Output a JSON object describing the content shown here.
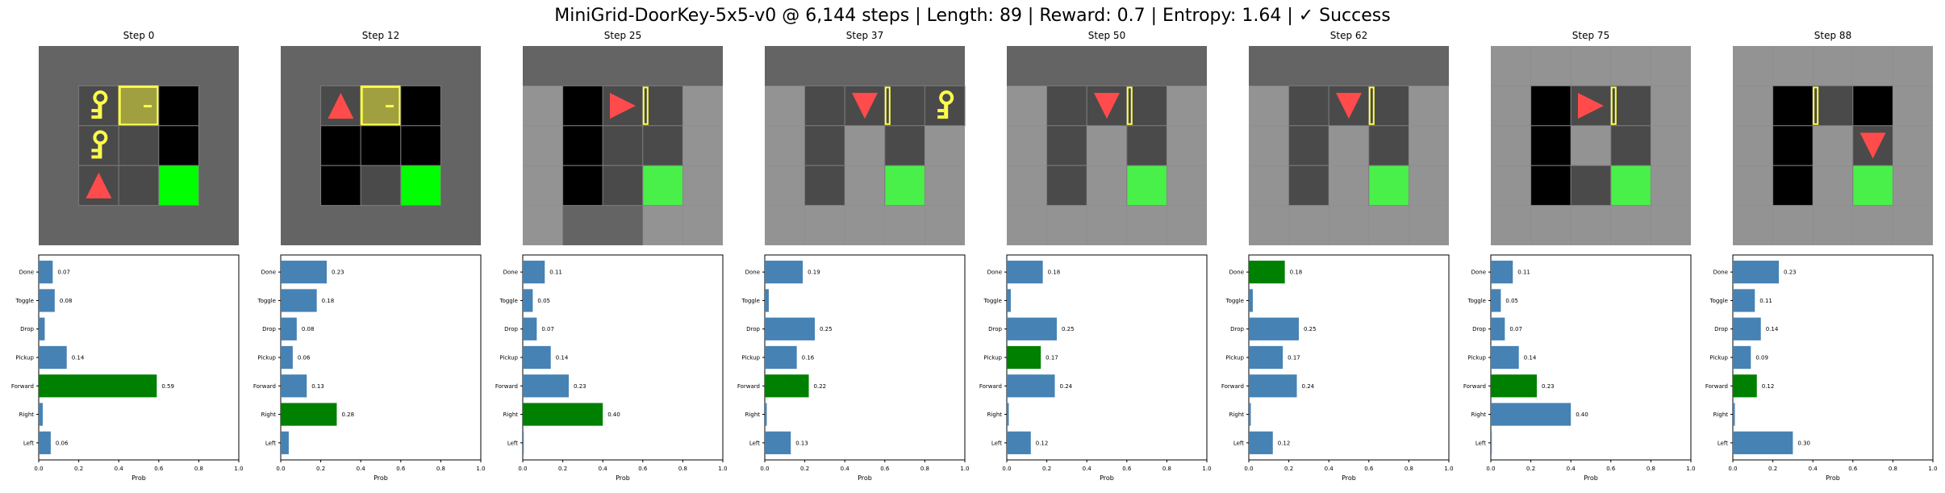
{
  "suptitle": "MiniGrid-DoorKey-5x5-v0 @ 6,144 steps | Length: 89 | Reward: 0.7 | Entropy: 1.64 | ✓ Success",
  "colors": {
    "bar": "#4682b4",
    "bar_selected": "#008000",
    "wall": "#646464",
    "floor_view": "#939393",
    "floor_visible": "#4a4a4a",
    "unseen": "#000000",
    "goal_view": "#4af04a",
    "goal": "#00ff00",
    "agent": "#ff4b4b",
    "key": "#ffff4b",
    "door_closed_fill": "#a0a040",
    "door_stroke": "#ffff4b"
  },
  "steps": [
    {
      "title": "Step 0",
      "agent_dir": "up",
      "door": "closed",
      "has_key_on_floor": true
    },
    {
      "title": "Step 12",
      "agent_dir": "up",
      "door": "closed",
      "has_key_on_floor": false
    },
    {
      "title": "Step 25",
      "agent_dir": "right",
      "door": "open",
      "has_key_on_floor": false
    },
    {
      "title": "Step 37",
      "agent_dir": "down",
      "door": "open",
      "has_key_on_floor": true
    },
    {
      "title": "Step 50",
      "agent_dir": "down",
      "door": "open",
      "has_key_on_floor": false
    },
    {
      "title": "Step 62",
      "agent_dir": "down",
      "door": "open",
      "has_key_on_floor": false
    },
    {
      "title": "Step 75",
      "agent_dir": "right",
      "door": "open",
      "has_key_on_floor": false
    },
    {
      "title": "Step 88",
      "agent_dir": "down",
      "door": "open",
      "has_key_on_floor": false
    }
  ],
  "chart_data": [
    {
      "type": "bar",
      "orientation": "horizontal",
      "title": "Step 0",
      "xlabel": "Prob",
      "xlim": [
        0,
        1
      ],
      "xticks": [
        "0.0",
        "0.2",
        "0.4",
        "0.6",
        "0.8",
        "1.0"
      ],
      "categories": [
        "Done",
        "Toggle",
        "Drop",
        "Pickup",
        "Forward",
        "Right",
        "Left"
      ],
      "values": [
        0.07,
        0.08,
        0.03,
        0.14,
        0.59,
        0.02,
        0.06
      ],
      "labels": [
        "0.07",
        "0.08",
        "",
        "0.14",
        "0.59",
        "",
        "0.06"
      ],
      "selected": "Forward"
    },
    {
      "type": "bar",
      "orientation": "horizontal",
      "title": "Step 12",
      "xlabel": "Prob",
      "xlim": [
        0,
        1
      ],
      "xticks": [
        "0.0",
        "0.2",
        "0.4",
        "0.6",
        "0.8",
        "1.0"
      ],
      "categories": [
        "Done",
        "Toggle",
        "Drop",
        "Pickup",
        "Forward",
        "Right",
        "Left"
      ],
      "values": [
        0.23,
        0.18,
        0.08,
        0.06,
        0.13,
        0.28,
        0.04
      ],
      "labels": [
        "0.23",
        "0.18",
        "0.08",
        "0.06",
        "0.13",
        "0.28",
        ""
      ],
      "selected": "Right"
    },
    {
      "type": "bar",
      "orientation": "horizontal",
      "title": "Step 25",
      "xlabel": "Prob",
      "xlim": [
        0,
        1
      ],
      "xticks": [
        "0.0",
        "0.2",
        "0.4",
        "0.6",
        "0.8",
        "1.0"
      ],
      "categories": [
        "Done",
        "Toggle",
        "Drop",
        "Pickup",
        "Forward",
        "Right",
        "Left"
      ],
      "values": [
        0.11,
        0.05,
        0.07,
        0.14,
        0.23,
        0.4,
        0.005
      ],
      "labels": [
        "0.11",
        "0.05",
        "0.07",
        "0.14",
        "0.23",
        "0.40",
        ""
      ],
      "selected": "Right"
    },
    {
      "type": "bar",
      "orientation": "horizontal",
      "title": "Step 37",
      "xlabel": "Prob",
      "xlim": [
        0,
        1
      ],
      "xticks": [
        "0.0",
        "0.2",
        "0.4",
        "0.6",
        "0.8",
        "1.0"
      ],
      "categories": [
        "Done",
        "Toggle",
        "Drop",
        "Pickup",
        "Forward",
        "Right",
        "Left"
      ],
      "values": [
        0.19,
        0.02,
        0.25,
        0.16,
        0.22,
        0.01,
        0.13
      ],
      "labels": [
        "0.19",
        "",
        "0.25",
        "0.16",
        "0.22",
        "",
        "0.13"
      ],
      "selected": "Forward"
    },
    {
      "type": "bar",
      "orientation": "horizontal",
      "title": "Step 50",
      "xlabel": "Prob",
      "xlim": [
        0,
        1
      ],
      "xticks": [
        "0.0",
        "0.2",
        "0.4",
        "0.6",
        "0.8",
        "1.0"
      ],
      "categories": [
        "Done",
        "Toggle",
        "Drop",
        "Pickup",
        "Forward",
        "Right",
        "Left"
      ],
      "values": [
        0.18,
        0.02,
        0.25,
        0.17,
        0.24,
        0.01,
        0.12
      ],
      "labels": [
        "0.18",
        "",
        "0.25",
        "0.17",
        "0.24",
        "",
        "0.12"
      ],
      "selected": "Pickup"
    },
    {
      "type": "bar",
      "orientation": "horizontal",
      "title": "Step 62",
      "xlabel": "Prob",
      "xlim": [
        0,
        1
      ],
      "xticks": [
        "0.0",
        "0.2",
        "0.4",
        "0.6",
        "0.8",
        "1.0"
      ],
      "categories": [
        "Done",
        "Toggle",
        "Drop",
        "Pickup",
        "Forward",
        "Right",
        "Left"
      ],
      "values": [
        0.18,
        0.02,
        0.25,
        0.17,
        0.24,
        0.01,
        0.12
      ],
      "labels": [
        "0.18",
        "",
        "0.25",
        "0.17",
        "0.24",
        "",
        "0.12"
      ],
      "selected": "Done"
    },
    {
      "type": "bar",
      "orientation": "horizontal",
      "title": "Step 75",
      "xlabel": "Prob",
      "xlim": [
        0,
        1
      ],
      "xticks": [
        "0.0",
        "0.2",
        "0.4",
        "0.6",
        "0.8",
        "1.0"
      ],
      "categories": [
        "Done",
        "Toggle",
        "Drop",
        "Pickup",
        "Forward",
        "Right",
        "Left"
      ],
      "values": [
        0.11,
        0.05,
        0.07,
        0.14,
        0.23,
        0.4,
        0.005
      ],
      "labels": [
        "0.11",
        "0.05",
        "0.07",
        "0.14",
        "0.23",
        "0.40",
        ""
      ],
      "selected": "Forward"
    },
    {
      "type": "bar",
      "orientation": "horizontal",
      "title": "Step 88",
      "xlabel": "Prob",
      "xlim": [
        0,
        1
      ],
      "xticks": [
        "0.0",
        "0.2",
        "0.4",
        "0.6",
        "0.8",
        "1.0"
      ],
      "categories": [
        "Done",
        "Toggle",
        "Drop",
        "Pickup",
        "Forward",
        "Right",
        "Left"
      ],
      "values": [
        0.23,
        0.11,
        0.14,
        0.09,
        0.12,
        0.01,
        0.3
      ],
      "labels": [
        "0.23",
        "0.11",
        "0.14",
        "0.09",
        "0.12",
        "",
        "0.30"
      ],
      "selected": "Forward"
    }
  ]
}
